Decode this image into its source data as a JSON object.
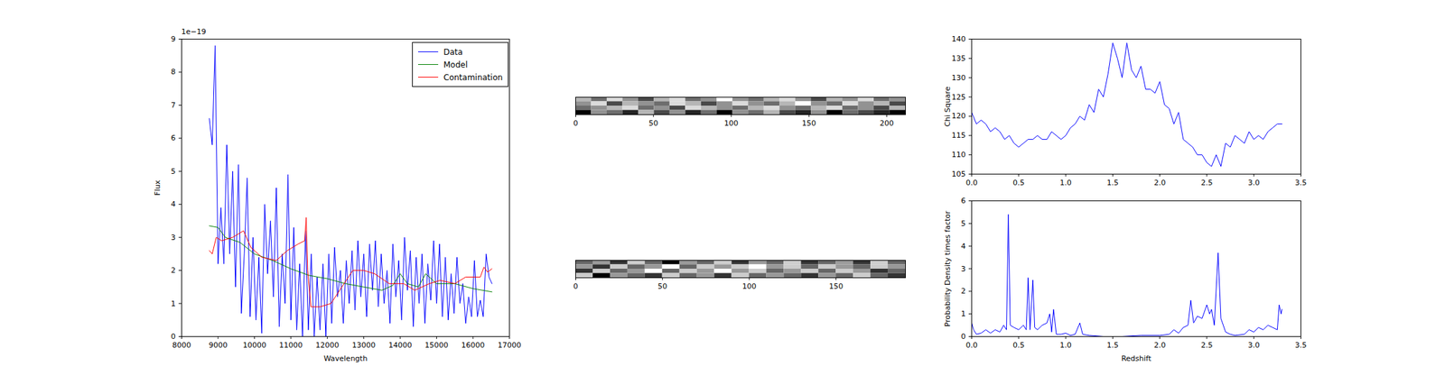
{
  "chart_data": [
    {
      "type": "line",
      "xlabel": "Wavelength",
      "ylabel": "Flux",
      "grid": false,
      "legend": "upper right",
      "annotations": [
        {
          "text": "1e−19"
        }
      ],
      "xlim": [
        8000,
        17000
      ],
      "xticks": [
        8000,
        9000,
        10000,
        11000,
        12000,
        13000,
        14000,
        15000,
        16000,
        17000
      ],
      "ylim": [
        0,
        9
      ],
      "yticks": [
        0,
        1,
        2,
        3,
        4,
        5,
        6,
        7,
        8,
        9
      ],
      "series": [
        {
          "name": "Data",
          "color": "#0000ff",
          "x": [
            8760,
            8840,
            8920,
            9000,
            9080,
            9160,
            9240,
            9320,
            9400,
            9480,
            9560,
            9640,
            9720,
            9800,
            9880,
            9960,
            10040,
            10120,
            10200,
            10280,
            10360,
            10440,
            10520,
            10600,
            10680,
            10760,
            10840,
            10920,
            11000,
            11080,
            11160,
            11240,
            11320,
            11400,
            11480,
            11560,
            11640,
            11720,
            11800,
            11880,
            11960,
            12040,
            12120,
            12200,
            12280,
            12360,
            12440,
            12520,
            12600,
            12680,
            12760,
            12840,
            12920,
            13000,
            13080,
            13160,
            13240,
            13320,
            13400,
            13480,
            13560,
            13640,
            13720,
            13800,
            13880,
            13960,
            14040,
            14120,
            14200,
            14280,
            14360,
            14440,
            14520,
            14600,
            14680,
            14760,
            14840,
            14920,
            15000,
            15080,
            15160,
            15240,
            15320,
            15400,
            15480,
            15560,
            15640,
            15720,
            15800,
            15880,
            15960,
            16040,
            16120,
            16200,
            16280,
            16360,
            16440,
            16520
          ],
          "values": [
            6.6,
            5.8,
            8.8,
            2.2,
            3.9,
            2.2,
            5.8,
            2.5,
            5.0,
            1.5,
            5.2,
            0.7,
            2.5,
            4.8,
            0.6,
            3.0,
            0.5,
            2.4,
            0.1,
            4.0,
            1.9,
            3.5,
            1.2,
            4.5,
            0.3,
            2.5,
            1.0,
            4.9,
            0.5,
            3.3,
            0.2,
            2.2,
            0.0,
            3.2,
            0.2,
            2.5,
            0.0,
            1.8,
            0.2,
            2.2,
            0.0,
            2.5,
            0.4,
            2.7,
            1.2,
            2.0,
            0.4,
            2.3,
            1.0,
            2.6,
            0.8,
            2.9,
            1.2,
            2.5,
            0.6,
            2.8,
            1.4,
            2.9,
            0.9,
            2.5,
            1.0,
            2.0,
            0.4,
            2.8,
            1.2,
            2.3,
            0.5,
            3.0,
            1.4,
            2.6,
            0.3,
            2.4,
            1.0,
            2.5,
            0.4,
            2.2,
            1.1,
            2.9,
            1.0,
            2.8,
            0.6,
            2.4,
            0.5,
            1.9,
            0.7,
            2.4,
            1.0,
            1.6,
            0.4,
            1.2,
            0.6,
            2.3,
            0.6,
            1.1,
            0.6,
            2.5,
            1.8,
            1.6
          ]
        },
        {
          "name": "Model",
          "color": "#008000",
          "x": [
            8760,
            9000,
            9200,
            9600,
            10000,
            10500,
            11000,
            11500,
            12000,
            12500,
            13000,
            13500,
            13800,
            14000,
            14200,
            14500,
            14700,
            15000,
            15500,
            16000,
            16520
          ],
          "values": [
            3.35,
            3.3,
            3.0,
            2.85,
            2.5,
            2.3,
            2.05,
            1.85,
            1.75,
            1.6,
            1.5,
            1.4,
            1.55,
            1.9,
            1.6,
            1.5,
            1.9,
            1.6,
            1.6,
            1.45,
            1.35
          ]
        },
        {
          "name": "Contamination",
          "color": "#ff0000",
          "x": [
            8760,
            8840,
            8950,
            9100,
            9400,
            9700,
            9900,
            10200,
            10600,
            10900,
            11200,
            11380,
            11420,
            11460,
            11550,
            11800,
            12100,
            12400,
            12700,
            13000,
            13300,
            13700,
            14100,
            14400,
            14800,
            15100,
            15500,
            15800,
            16200,
            16300,
            16400,
            16520
          ],
          "values": [
            2.6,
            2.5,
            3.0,
            2.9,
            3.0,
            3.2,
            2.7,
            2.4,
            2.3,
            2.6,
            2.8,
            2.9,
            3.6,
            2.0,
            0.9,
            0.9,
            1.0,
            1.5,
            2.0,
            2.0,
            1.9,
            1.6,
            1.6,
            1.4,
            1.6,
            1.7,
            1.6,
            1.8,
            1.8,
            2.1,
            1.95,
            2.05
          ]
        }
      ]
    },
    {
      "type": "heatmap",
      "tick_labels": "x",
      "xlim": [
        0,
        212
      ],
      "xticks": [
        0,
        50,
        100,
        150,
        200
      ],
      "ylim": [
        0,
        20
      ],
      "cells": [
        [
          0.55,
          0.45,
          0.6,
          0.5,
          0.4,
          0.55,
          0.6,
          0.45,
          0.5,
          0.65,
          0.5,
          0.45,
          0.55,
          0.6,
          0.5,
          0.4,
          0.55,
          0.5,
          0.6,
          0.45,
          0.5
        ],
        [
          0.5,
          0.6,
          0.4,
          0.55,
          0.5,
          0.45,
          0.6,
          0.55,
          0.4,
          0.5,
          0.6,
          0.5,
          0.45,
          0.55,
          0.65,
          0.5,
          0.45,
          0.6,
          0.5,
          0.55,
          0.4
        ],
        [
          0.45,
          0.5,
          0.55,
          0.6,
          0.45,
          0.5,
          0.4,
          0.6,
          0.55,
          0.5,
          0.45,
          0.55,
          0.6,
          0.5,
          0.45,
          0.55,
          0.6,
          0.45,
          0.5,
          0.4,
          0.55
        ],
        [
          0.3,
          0.5,
          0.45,
          0.35,
          0.55,
          0.4,
          0.5,
          0.35,
          0.45,
          0.3,
          0.5,
          0.45,
          0.55,
          0.4,
          0.35,
          0.5,
          0.3,
          0.45,
          0.4,
          0.35,
          0.3
        ]
      ]
    },
    {
      "type": "heatmap",
      "tick_labels": "x",
      "xlim": [
        0,
        190
      ],
      "xticks": [
        0,
        50,
        100,
        150
      ],
      "ylim": [
        0,
        20
      ],
      "cells": [
        [
          0.5,
          0.55,
          0.45,
          0.6,
          0.5,
          0.4,
          0.55,
          0.5,
          0.6,
          0.45,
          0.55,
          0.5,
          0.6,
          0.45,
          0.5,
          0.55,
          0.45,
          0.6,
          0.5
        ],
        [
          0.55,
          0.45,
          0.6,
          0.5,
          0.55,
          0.65,
          0.5,
          0.6,
          0.55,
          0.6,
          0.65,
          0.55,
          0.6,
          0.5,
          0.6,
          0.55,
          0.5,
          0.6,
          0.55
        ],
        [
          0.45,
          0.6,
          0.5,
          0.55,
          0.65,
          0.5,
          0.6,
          0.55,
          0.65,
          0.55,
          0.6,
          0.5,
          0.55,
          0.6,
          0.5,
          0.6,
          0.55,
          0.45,
          0.5
        ],
        [
          0.6,
          0.4,
          0.55,
          0.5,
          0.45,
          0.6,
          0.5,
          0.55,
          0.45,
          0.6,
          0.5,
          0.55,
          0.5,
          0.45,
          0.55,
          0.5,
          0.6,
          0.5,
          0.45
        ]
      ]
    },
    {
      "type": "line",
      "ylabel": "Chi Square",
      "grid": false,
      "xlim": [
        0,
        3.5
      ],
      "xticks": [
        {
          "value": 0,
          "label": "0.0"
        },
        0.5,
        {
          "value": 1,
          "label": "1.0"
        },
        1.5,
        {
          "value": 2,
          "label": "2.0"
        },
        2.5,
        {
          "value": 3,
          "label": "3.0"
        },
        3.5
      ],
      "ylim": [
        105,
        140
      ],
      "yticks": [
        105,
        110,
        115,
        120,
        125,
        130,
        135,
        140
      ],
      "series": [
        {
          "color": "#0000ff",
          "x": [
            0,
            0.05,
            0.1,
            0.15,
            0.2,
            0.25,
            0.3,
            0.35,
            0.4,
            0.45,
            0.5,
            0.55,
            0.6,
            0.65,
            0.7,
            0.75,
            0.8,
            0.85,
            0.9,
            0.95,
            1.0,
            1.05,
            1.1,
            1.15,
            1.2,
            1.25,
            1.3,
            1.35,
            1.4,
            1.45,
            1.5,
            1.55,
            1.6,
            1.65,
            1.7,
            1.75,
            1.8,
            1.85,
            1.9,
            1.95,
            2.0,
            2.05,
            2.1,
            2.15,
            2.2,
            2.25,
            2.3,
            2.35,
            2.4,
            2.45,
            2.5,
            2.55,
            2.6,
            2.65,
            2.7,
            2.75,
            2.8,
            2.85,
            2.9,
            2.95,
            3.0,
            3.05,
            3.1,
            3.15,
            3.2,
            3.25,
            3.3
          ],
          "values": [
            121,
            118,
            119,
            118,
            116,
            117,
            116,
            114,
            115,
            113,
            112,
            113,
            114,
            114,
            115,
            114,
            114,
            116,
            115,
            114,
            115,
            117,
            118,
            120,
            119,
            123,
            121,
            127,
            125,
            131,
            139,
            135,
            130,
            139,
            132,
            130,
            133,
            127,
            127,
            126,
            129,
            123,
            122,
            118,
            121,
            114,
            113,
            112,
            110,
            110,
            108,
            107,
            110,
            107,
            113,
            112,
            115,
            114,
            113,
            116,
            114,
            115,
            114,
            116,
            117,
            118,
            118
          ]
        }
      ]
    },
    {
      "type": "line",
      "xlabel": "Redshift",
      "ylabel": "Probability Density times factor",
      "grid": false,
      "xlim": [
        0,
        3.5
      ],
      "xticks": [
        {
          "value": 0,
          "label": "0.0"
        },
        0.5,
        {
          "value": 1,
          "label": "1.0"
        },
        1.5,
        {
          "value": 2,
          "label": "2.0"
        },
        2.5,
        {
          "value": 3,
          "label": "3.0"
        },
        3.5
      ],
      "ylim": [
        0,
        6
      ],
      "yticks": [
        0,
        1,
        2,
        3,
        4,
        5,
        6
      ],
      "series": [
        {
          "color": "#0000ff",
          "x": [
            0,
            0.02,
            0.05,
            0.1,
            0.15,
            0.2,
            0.25,
            0.3,
            0.34,
            0.37,
            0.39,
            0.41,
            0.45,
            0.5,
            0.55,
            0.58,
            0.6,
            0.62,
            0.65,
            0.67,
            0.7,
            0.75,
            0.8,
            0.83,
            0.85,
            0.87,
            0.9,
            0.95,
            1.0,
            1.05,
            1.1,
            1.15,
            1.18,
            1.25,
            1.4,
            1.6,
            1.8,
            2.0,
            2.1,
            2.15,
            2.2,
            2.25,
            2.3,
            2.33,
            2.36,
            2.4,
            2.45,
            2.5,
            2.53,
            2.55,
            2.58,
            2.62,
            2.65,
            2.7,
            2.75,
            2.8,
            2.9,
            2.95,
            3.0,
            3.05,
            3.1,
            3.15,
            3.2,
            3.25,
            3.27,
            3.29,
            3.3
          ],
          "values": [
            0.6,
            0.3,
            0.1,
            0.15,
            0.3,
            0.15,
            0.3,
            0.2,
            0.5,
            0.3,
            5.4,
            0.5,
            0.4,
            0.3,
            0.5,
            0.3,
            2.6,
            0.3,
            2.5,
            0.4,
            0.3,
            0.5,
            0.6,
            1.0,
            0.2,
            1.2,
            0.1,
            0.1,
            0.15,
            0.05,
            0.1,
            0.6,
            0.1,
            0.05,
            0.0,
            0.0,
            0.05,
            0.05,
            0.1,
            0.3,
            0.15,
            0.4,
            0.5,
            1.6,
            0.6,
            0.9,
            0.8,
            1.4,
            1.0,
            1.2,
            0.5,
            3.7,
            0.8,
            0.2,
            0.1,
            0.05,
            0.1,
            0.3,
            0.2,
            0.4,
            0.3,
            0.5,
            0.4,
            0.3,
            1.4,
            1.0,
            1.2
          ]
        }
      ]
    }
  ]
}
